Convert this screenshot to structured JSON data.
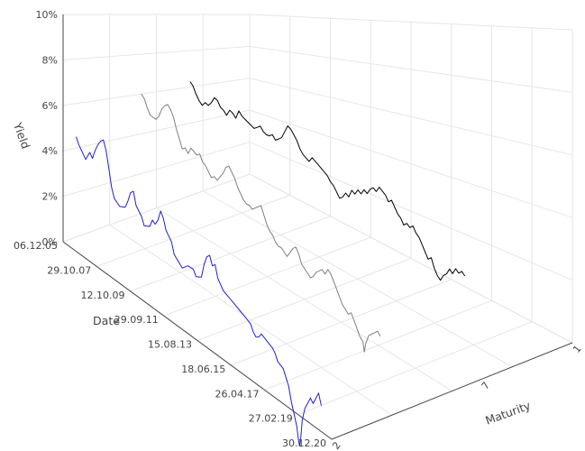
{
  "chart_data": {
    "type": "line",
    "projection": "3d",
    "title": "",
    "axis_titles": {
      "yield": "Yield",
      "date": "Date",
      "maturity": "Maturity"
    },
    "yield_axis": {
      "min": 0,
      "max": 10,
      "tick_labels": [
        "0%",
        "2%",
        "4%",
        "6%",
        "8%",
        "10%"
      ]
    },
    "date_axis": {
      "tick_labels": [
        "06.12.05",
        "29.10.07",
        "12.10.09",
        "29.09.11",
        "15.08.13",
        "18.06.15",
        "26.04.17",
        "27.02.19",
        "30.12.20"
      ]
    },
    "maturity_axis": {
      "tick_labels": [
        "2",
        "7",
        "1"
      ]
    },
    "grid": true,
    "colors": {
      "blue": "#1f1fd0",
      "gray": "#7f7f7f",
      "black": "#000000"
    },
    "series": [
      {
        "color_key": "blue",
        "maturity_label": "2",
        "points": [
          [
            0.0,
            3.2
          ],
          [
            0.01,
            2.9
          ],
          [
            0.02,
            2.7
          ],
          [
            0.035,
            2.4
          ],
          [
            0.05,
            2.8
          ],
          [
            0.06,
            2.6
          ],
          [
            0.07,
            3.0
          ],
          [
            0.08,
            3.3
          ],
          [
            0.09,
            3.5
          ],
          [
            0.1,
            3.6
          ],
          [
            0.11,
            3.2
          ],
          [
            0.12,
            2.5
          ],
          [
            0.13,
            1.8
          ],
          [
            0.14,
            1.4
          ],
          [
            0.16,
            1.2
          ],
          [
            0.18,
            1.3
          ],
          [
            0.19,
            1.6
          ],
          [
            0.2,
            2.0
          ],
          [
            0.21,
            2.1
          ],
          [
            0.22,
            1.6
          ],
          [
            0.24,
            1.3
          ],
          [
            0.25,
            1.0
          ],
          [
            0.27,
            1.1
          ],
          [
            0.28,
            1.4
          ],
          [
            0.29,
            1.3
          ],
          [
            0.3,
            1.5
          ],
          [
            0.31,
            1.9
          ],
          [
            0.32,
            1.7
          ],
          [
            0.33,
            1.3
          ],
          [
            0.35,
            1.0
          ],
          [
            0.36,
            0.6
          ],
          [
            0.38,
            0.4
          ],
          [
            0.39,
            0.3
          ],
          [
            0.41,
            0.5
          ],
          [
            0.43,
            0.5
          ],
          [
            0.44,
            0.3
          ],
          [
            0.46,
            0.4
          ],
          [
            0.47,
            0.9
          ],
          [
            0.48,
            1.2
          ],
          [
            0.49,
            1.3
          ],
          [
            0.5,
            1.0
          ],
          [
            0.51,
            1.1
          ],
          [
            0.52,
            0.7
          ],
          [
            0.54,
            0.4
          ],
          [
            0.56,
            0.3
          ],
          [
            0.58,
            0.2
          ],
          [
            0.6,
            0.1
          ],
          [
            0.62,
            0.0
          ],
          [
            0.64,
            -0.1
          ],
          [
            0.65,
            -0.3
          ],
          [
            0.66,
            -0.4
          ],
          [
            0.67,
            -0.35
          ],
          [
            0.68,
            -0.2
          ],
          [
            0.7,
            -0.3
          ],
          [
            0.72,
            -0.4
          ],
          [
            0.73,
            -0.5
          ],
          [
            0.74,
            -0.7
          ],
          [
            0.76,
            -0.8
          ],
          [
            0.77,
            -1.0
          ],
          [
            0.78,
            -1.2
          ],
          [
            0.79,
            -1.6
          ],
          [
            0.8,
            -1.9
          ],
          [
            0.81,
            -2.2
          ],
          [
            0.815,
            -2.5
          ],
          [
            0.82,
            -2.7
          ],
          [
            0.825,
            -2.4
          ],
          [
            0.83,
            -1.9
          ],
          [
            0.84,
            -1.5
          ],
          [
            0.85,
            -1.3
          ],
          [
            0.86,
            -1.1
          ],
          [
            0.87,
            -1.2
          ],
          [
            0.88,
            -1.0
          ],
          [
            0.89,
            -0.8
          ],
          [
            0.9,
            -1.1
          ]
        ]
      },
      {
        "color_key": "gray",
        "maturity_label": "",
        "points": [
          [
            0.0,
            4.7
          ],
          [
            0.01,
            4.5
          ],
          [
            0.02,
            4.1
          ],
          [
            0.03,
            3.8
          ],
          [
            0.05,
            3.7
          ],
          [
            0.06,
            3.9
          ],
          [
            0.07,
            4.3
          ],
          [
            0.08,
            4.5
          ],
          [
            0.09,
            4.6
          ],
          [
            0.1,
            4.4
          ],
          [
            0.11,
            4.1
          ],
          [
            0.12,
            3.6
          ],
          [
            0.13,
            3.2
          ],
          [
            0.14,
            2.8
          ],
          [
            0.15,
            2.9
          ],
          [
            0.16,
            2.7
          ],
          [
            0.17,
            3.0
          ],
          [
            0.18,
            2.9
          ],
          [
            0.19,
            2.8
          ],
          [
            0.2,
            2.9
          ],
          [
            0.21,
            2.6
          ],
          [
            0.22,
            2.5
          ],
          [
            0.23,
            2.3
          ],
          [
            0.24,
            2.1
          ],
          [
            0.25,
            2.2
          ],
          [
            0.26,
            2.1
          ],
          [
            0.27,
            2.3
          ],
          [
            0.28,
            2.5
          ],
          [
            0.29,
            2.8
          ],
          [
            0.3,
            2.9
          ],
          [
            0.31,
            2.7
          ],
          [
            0.32,
            2.5
          ],
          [
            0.33,
            2.2
          ],
          [
            0.34,
            2.0
          ],
          [
            0.35,
            1.8
          ],
          [
            0.36,
            1.7
          ],
          [
            0.37,
            1.7
          ],
          [
            0.38,
            1.6
          ],
          [
            0.39,
            1.7
          ],
          [
            0.4,
            1.8
          ],
          [
            0.41,
            1.9
          ],
          [
            0.42,
            1.6
          ],
          [
            0.43,
            1.3
          ],
          [
            0.44,
            1.1
          ],
          [
            0.45,
            1.0
          ],
          [
            0.46,
            0.8
          ],
          [
            0.47,
            0.7
          ],
          [
            0.48,
            0.7
          ],
          [
            0.49,
            0.6
          ],
          [
            0.5,
            0.5
          ],
          [
            0.51,
            0.7
          ],
          [
            0.52,
            0.9
          ],
          [
            0.53,
            1.0
          ],
          [
            0.54,
            0.8
          ],
          [
            0.55,
            0.5
          ],
          [
            0.56,
            0.4
          ],
          [
            0.57,
            0.3
          ],
          [
            0.58,
            0.2
          ],
          [
            0.59,
            0.3
          ],
          [
            0.6,
            0.5
          ],
          [
            0.61,
            0.6
          ],
          [
            0.62,
            0.7
          ],
          [
            0.63,
            0.6
          ],
          [
            0.64,
            0.8
          ],
          [
            0.65,
            0.7
          ],
          [
            0.66,
            0.5
          ],
          [
            0.67,
            0.3
          ],
          [
            0.68,
            0.1
          ],
          [
            0.69,
            -0.1
          ],
          [
            0.7,
            -0.2
          ],
          [
            0.71,
            -0.3
          ],
          [
            0.72,
            -0.2
          ],
          [
            0.73,
            -0.4
          ],
          [
            0.74,
            -0.6
          ],
          [
            0.75,
            -0.8
          ],
          [
            0.76,
            -0.9
          ],
          [
            0.765,
            -1.2
          ],
          [
            0.77,
            -0.9
          ],
          [
            0.78,
            -0.6
          ],
          [
            0.79,
            -0.5
          ],
          [
            0.8,
            -0.4
          ],
          [
            0.81,
            -0.3
          ],
          [
            0.82,
            -0.4
          ]
        ]
      },
      {
        "color_key": "black",
        "maturity_label": "7",
        "points": [
          [
            0.0,
            5.0
          ],
          [
            0.01,
            4.8
          ],
          [
            0.02,
            4.4
          ],
          [
            0.03,
            4.1
          ],
          [
            0.04,
            3.9
          ],
          [
            0.05,
            4.1
          ],
          [
            0.06,
            4.0
          ],
          [
            0.07,
            4.2
          ],
          [
            0.08,
            4.5
          ],
          [
            0.09,
            4.4
          ],
          [
            0.1,
            4.1
          ],
          [
            0.11,
            4.0
          ],
          [
            0.12,
            3.8
          ],
          [
            0.13,
            4.1
          ],
          [
            0.14,
            4.0
          ],
          [
            0.15,
            3.8
          ],
          [
            0.16,
            4.2
          ],
          [
            0.17,
            4.0
          ],
          [
            0.18,
            3.9
          ],
          [
            0.19,
            3.8
          ],
          [
            0.2,
            3.7
          ],
          [
            0.21,
            3.6
          ],
          [
            0.22,
            3.7
          ],
          [
            0.23,
            3.8
          ],
          [
            0.24,
            3.6
          ],
          [
            0.25,
            3.5
          ],
          [
            0.26,
            3.5
          ],
          [
            0.27,
            3.6
          ],
          [
            0.28,
            3.4
          ],
          [
            0.29,
            3.5
          ],
          [
            0.3,
            3.6
          ],
          [
            0.31,
            3.9
          ],
          [
            0.32,
            4.2
          ],
          [
            0.33,
            4.1
          ],
          [
            0.34,
            3.9
          ],
          [
            0.35,
            3.7
          ],
          [
            0.36,
            3.4
          ],
          [
            0.37,
            3.2
          ],
          [
            0.38,
            3.1
          ],
          [
            0.39,
            3.0
          ],
          [
            0.4,
            3.2
          ],
          [
            0.41,
            3.1
          ],
          [
            0.42,
            3.0
          ],
          [
            0.43,
            2.9
          ],
          [
            0.44,
            2.8
          ],
          [
            0.45,
            2.7
          ],
          [
            0.46,
            2.5
          ],
          [
            0.47,
            2.4
          ],
          [
            0.48,
            2.2
          ],
          [
            0.49,
            2.0
          ],
          [
            0.5,
            2.1
          ],
          [
            0.51,
            2.3
          ],
          [
            0.52,
            2.2
          ],
          [
            0.53,
            2.5
          ],
          [
            0.54,
            2.4
          ],
          [
            0.55,
            2.6
          ],
          [
            0.56,
            2.5
          ],
          [
            0.57,
            2.7
          ],
          [
            0.58,
            2.6
          ],
          [
            0.59,
            2.8
          ],
          [
            0.6,
            2.9
          ],
          [
            0.61,
            2.8
          ],
          [
            0.62,
            3.0
          ],
          [
            0.63,
            2.9
          ],
          [
            0.64,
            2.8
          ],
          [
            0.65,
            2.6
          ],
          [
            0.66,
            2.7
          ],
          [
            0.67,
            2.5
          ],
          [
            0.68,
            2.3
          ],
          [
            0.69,
            2.2
          ],
          [
            0.7,
            2.0
          ],
          [
            0.71,
            2.1
          ],
          [
            0.72,
            2.0
          ],
          [
            0.73,
            2.1
          ],
          [
            0.74,
            1.9
          ],
          [
            0.75,
            1.8
          ],
          [
            0.76,
            1.6
          ],
          [
            0.77,
            1.4
          ],
          [
            0.78,
            1.2
          ],
          [
            0.79,
            1.3
          ],
          [
            0.8,
            1.0
          ],
          [
            0.81,
            0.8
          ],
          [
            0.82,
            0.7
          ],
          [
            0.83,
            0.9
          ],
          [
            0.84,
            1.0
          ],
          [
            0.85,
            1.2
          ],
          [
            0.86,
            1.1
          ],
          [
            0.87,
            1.3
          ],
          [
            0.88,
            1.2
          ],
          [
            0.89,
            1.3
          ],
          [
            0.9,
            1.2
          ]
        ]
      }
    ]
  }
}
